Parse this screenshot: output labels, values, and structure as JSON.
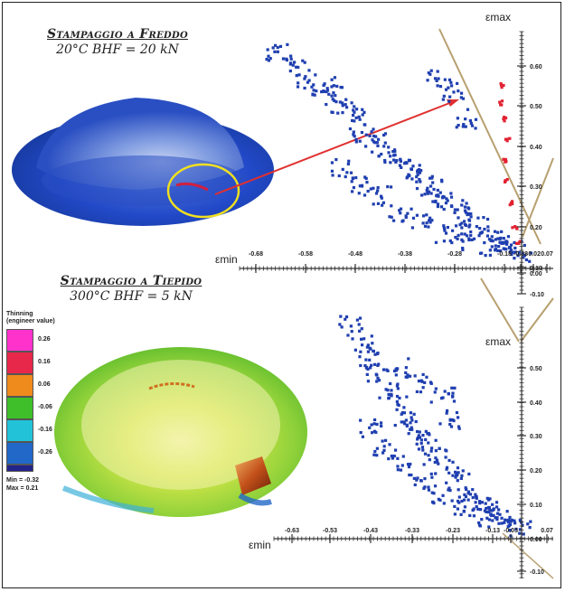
{
  "top": {
    "title_main": "Stampaggio a Freddo",
    "title_sub": "20°C BHF = 20 kN",
    "eps_max_label": "εmax",
    "eps_min_label": "εmin"
  },
  "bottom": {
    "title_main": "Stampaggio a Tiepido",
    "title_sub": "300°C BHF = 5 kN",
    "eps_max_label": "εmax",
    "eps_min_label": "εmin"
  },
  "legend": {
    "title": "Thinning (engineer value)",
    "items": [
      {
        "value": "0.26",
        "color": "#ff33cc"
      },
      {
        "value": "0.16",
        "color": "#e8284a"
      },
      {
        "value": "0.06",
        "color": "#ef8a1c"
      },
      {
        "value": "-0.06",
        "color": "#3fbf2a"
      },
      {
        "value": "-0.16",
        "color": "#22c3d8"
      },
      {
        "value": "-0.26",
        "color": "#2268c8"
      },
      {
        "value": "",
        "color": "#24238a"
      }
    ],
    "min": "Min = -0.32",
    "max": "Max = 0.21"
  },
  "chart_data": [
    {
      "type": "scatter",
      "x_ticks": [
        "-0.68",
        "-0.58",
        "-0.48",
        "-0.38",
        "-0.28",
        "-0.18",
        "-0.08",
        "-0.02",
        "0.07"
      ],
      "y_ticks": [
        "0.60",
        "0.50",
        "0.40",
        "0.30",
        "0.20",
        "0.10",
        "0.00",
        "-0.10"
      ],
      "series": [
        {
          "color": "#1f3fb0",
          "points": [
            [
              -0.62,
              0.6
            ],
            [
              -0.58,
              0.56
            ],
            [
              -0.55,
              0.52
            ],
            [
              -0.5,
              0.5
            ],
            [
              -0.47,
              0.47
            ],
            [
              -0.45,
              0.44
            ],
            [
              -0.42,
              0.42
            ],
            [
              -0.4,
              0.36
            ],
            [
              -0.36,
              0.33
            ],
            [
              -0.33,
              0.3
            ],
            [
              -0.3,
              0.28
            ],
            [
              -0.27,
              0.25
            ],
            [
              -0.25,
              0.22
            ],
            [
              -0.22,
              0.2
            ],
            [
              -0.2,
              0.17
            ],
            [
              -0.18,
              0.15
            ],
            [
              -0.15,
              0.13
            ],
            [
              -0.12,
              0.1
            ],
            [
              -0.1,
              0.08
            ],
            [
              -0.06,
              0.05
            ],
            [
              -0.03,
              0.03
            ],
            [
              -0.01,
              0.01
            ],
            [
              0.02,
              0.0
            ],
            [
              -0.45,
              0.25
            ],
            [
              -0.4,
              0.2
            ],
            [
              -0.35,
              0.17
            ],
            [
              -0.3,
              0.12
            ],
            [
              -0.24,
              0.09
            ],
            [
              -0.18,
              0.06
            ],
            [
              -0.12,
              0.04
            ],
            [
              -0.06,
              0.02
            ],
            [
              -0.2,
              0.52
            ],
            [
              -0.16,
              0.48
            ],
            [
              -0.13,
              0.4
            ]
          ]
        },
        {
          "color": "#e22232",
          "points": [
            [
              -0.03,
              0.5
            ],
            [
              -0.04,
              0.45
            ],
            [
              -0.03,
              0.4
            ],
            [
              -0.02,
              0.34
            ],
            [
              -0.03,
              0.28
            ],
            [
              -0.02,
              0.22
            ],
            [
              -0.01,
              0.15
            ],
            [
              0.0,
              0.08
            ],
            [
              0.01,
              0.03
            ]
          ]
        }
      ]
    },
    {
      "type": "scatter",
      "x_ticks": [
        "-0.63",
        "-0.53",
        "-0.43",
        "-0.33",
        "-0.23",
        "-0.13",
        "-0.03",
        "0.07"
      ],
      "y_ticks": [
        "0.50",
        "0.40",
        "0.30",
        "0.20",
        "0.10",
        "0.00",
        "-0.10"
      ],
      "series": [
        {
          "color": "#1f3fb0",
          "points": [
            [
              -0.45,
              0.55
            ],
            [
              -0.42,
              0.5
            ],
            [
              -0.4,
              0.46
            ],
            [
              -0.38,
              0.42
            ],
            [
              -0.35,
              0.38
            ],
            [
              -0.32,
              0.34
            ],
            [
              -0.3,
              0.3
            ],
            [
              -0.27,
              0.27
            ],
            [
              -0.24,
              0.24
            ],
            [
              -0.22,
              0.2
            ],
            [
              -0.19,
              0.17
            ],
            [
              -0.16,
              0.14
            ],
            [
              -0.13,
              0.11
            ],
            [
              -0.1,
              0.08
            ],
            [
              -0.07,
              0.06
            ],
            [
              -0.04,
              0.04
            ],
            [
              -0.02,
              0.02
            ],
            [
              0.01,
              0.01
            ],
            [
              -0.3,
              0.44
            ],
            [
              -0.25,
              0.4
            ],
            [
              -0.2,
              0.36
            ],
            [
              -0.18,
              0.3
            ],
            [
              -0.4,
              0.28
            ],
            [
              -0.36,
              0.22
            ],
            [
              -0.31,
              0.18
            ],
            [
              -0.26,
              0.14
            ],
            [
              -0.2,
              0.1
            ],
            [
              -0.14,
              0.07
            ],
            [
              -0.08,
              0.04
            ]
          ]
        }
      ]
    }
  ]
}
